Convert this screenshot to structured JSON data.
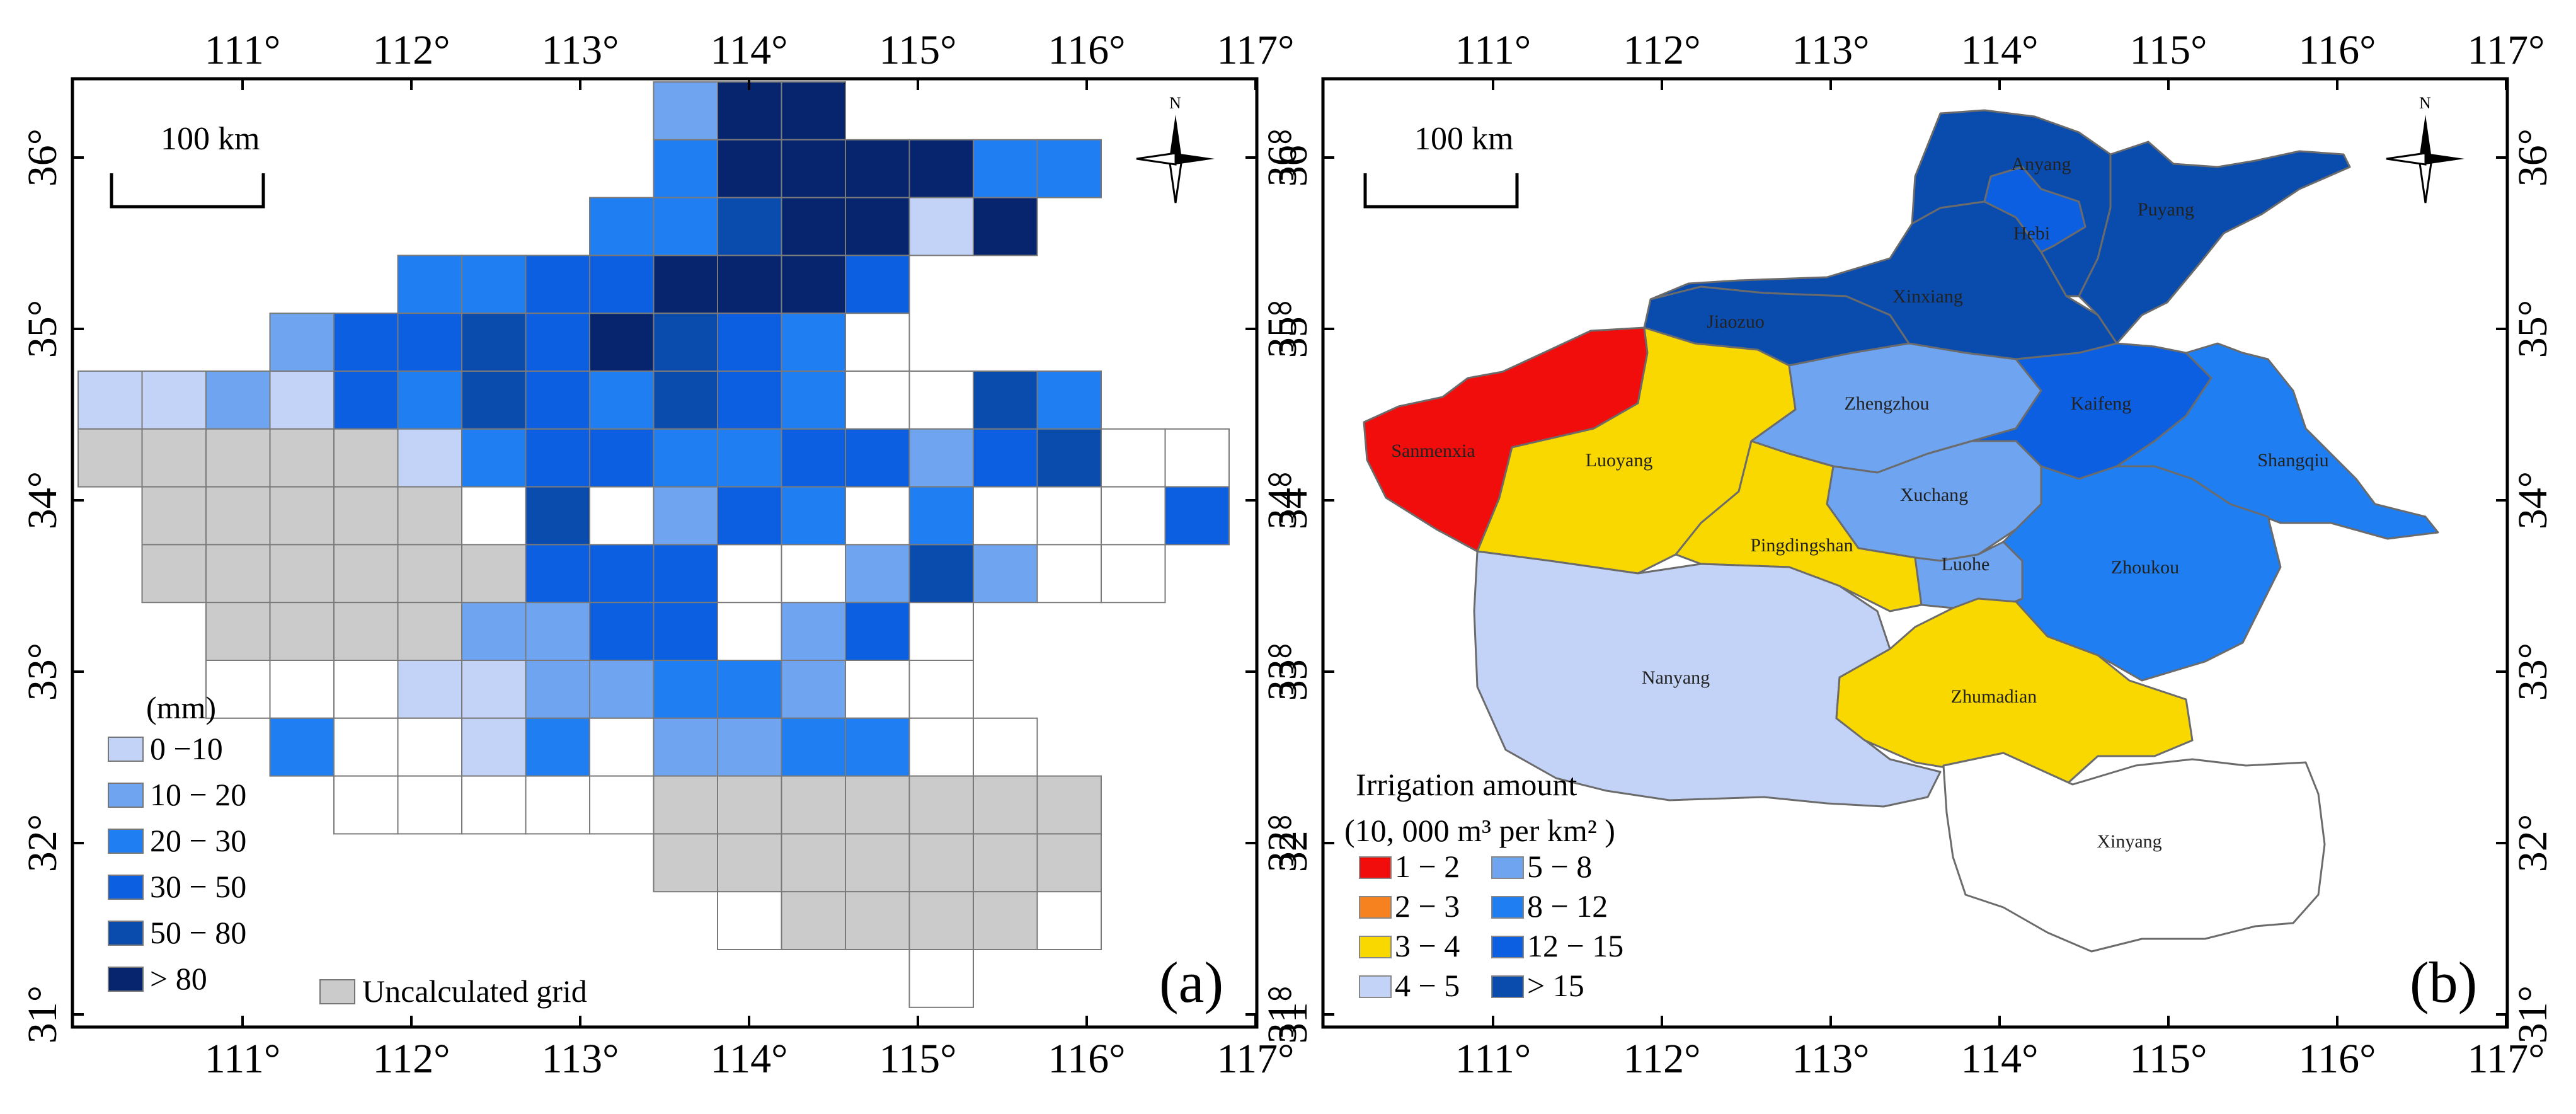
{
  "panels": [
    {
      "id": "a",
      "panel_label": "(a)",
      "scale_label": "100 km",
      "x_ticks": [
        "111°",
        "112°",
        "113°",
        "114°",
        "115°",
        "116°",
        "117°"
      ],
      "y_ticks": [
        "31°",
        "32°",
        "33°",
        "34°",
        "35°",
        "36°"
      ],
      "legend_title": "(mm)",
      "legend": [
        {
          "label": "0 −10",
          "color": "#c3d2f7"
        },
        {
          "label": "10 − 20",
          "color": "#6ea4f0"
        },
        {
          "label": "20 − 30",
          "color": "#1f7ff2"
        },
        {
          "label": "30 − 50",
          "color": "#0c5fe0"
        },
        {
          "label": "50 − 80",
          "color": "#0a4cae"
        },
        {
          "label": "> 80",
          "color": "#07246e"
        }
      ],
      "uncalculated_label": "Uncalculated grid",
      "uncalculated_color": "#cbcbcb"
    },
    {
      "id": "b",
      "panel_label": "(b)",
      "scale_label": "100 km",
      "x_ticks": [
        "111°",
        "112°",
        "113°",
        "114°",
        "115°",
        "116°",
        "117°"
      ],
      "y_ticks": [
        "31°",
        "32°",
        "33°",
        "34°",
        "35°",
        "36°"
      ],
      "legend_title": "Irrigation amount",
      "legend_unit": "(10, 000  m³ per km² )",
      "legend": [
        {
          "label": "1 − 2",
          "color": "#f20d0d"
        },
        {
          "label": "2 − 3",
          "color": "#f5821f"
        },
        {
          "label": "3 − 4",
          "color": "#f9d800"
        },
        {
          "label": "4 − 5",
          "color": "#c3d2f7"
        },
        {
          "label": "5 − 8",
          "color": "#6ea4f0"
        },
        {
          "label": "8 − 12",
          "color": "#1f7ff2"
        },
        {
          "label": "12 − 15",
          "color": "#0c5fe0"
        },
        {
          "label": "> 15",
          "color": "#0a4cae"
        }
      ],
      "regions": [
        {
          "name": "Anyang",
          "color": "#0a4cae"
        },
        {
          "name": "Puyang",
          "color": "#0a4cae"
        },
        {
          "name": "Hebi",
          "color": "#0c5fe0"
        },
        {
          "name": "Xinxiang",
          "color": "#0a4cae"
        },
        {
          "name": "Jiaozuo",
          "color": "#0a4cae"
        },
        {
          "name": "Sanmenxia",
          "color": "#f20d0d"
        },
        {
          "name": "Luoyang",
          "color": "#f9d800"
        },
        {
          "name": "Zhengzhou",
          "color": "#6ea4f0"
        },
        {
          "name": "Kaifeng",
          "color": "#0c5fe0"
        },
        {
          "name": "Shangqiu",
          "color": "#1f7ff2"
        },
        {
          "name": "Xuchang",
          "color": "#6ea4f0"
        },
        {
          "name": "Pingdingshan",
          "color": "#f9d800"
        },
        {
          "name": "Luohe",
          "color": "#6ea4f0"
        },
        {
          "name": "Zhoukou",
          "color": "#1f7ff2"
        },
        {
          "name": "Nanyang",
          "color": "#c3d2f7"
        },
        {
          "name": "Zhumadian",
          "color": "#f9d800"
        },
        {
          "name": "Xinyang",
          "color": "#ffffff"
        }
      ]
    }
  ],
  "compass_letter": "N"
}
